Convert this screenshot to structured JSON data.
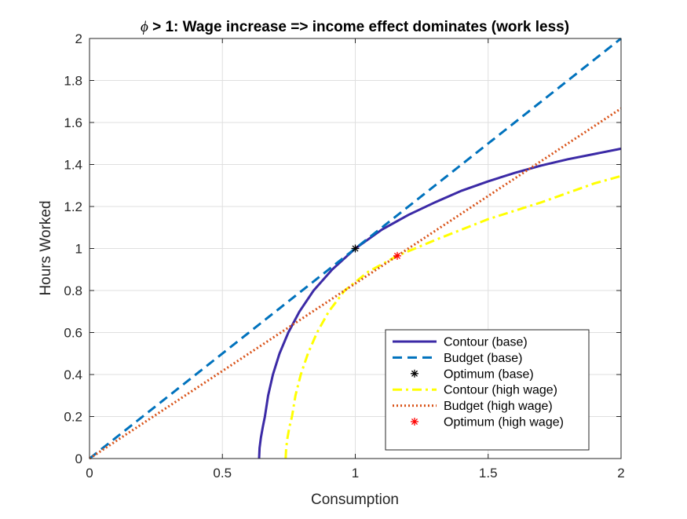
{
  "chart_data": {
    "type": "line",
    "title_symbol": "ϕ",
    "title": " > 1: Wage increase => income effect dominates (work less)",
    "xlabel": "Consumption",
    "ylabel": "Hours Worked",
    "xlim": [
      0,
      2
    ],
    "ylim": [
      0,
      2
    ],
    "xticks": [
      0,
      0.5,
      1,
      1.5,
      2
    ],
    "xtick_labels": [
      "0",
      "0.5",
      "1",
      "1.5",
      "2"
    ],
    "yticks": [
      0,
      0.2,
      0.4,
      0.6,
      0.8,
      1,
      1.2,
      1.4,
      1.6,
      1.8,
      2
    ],
    "ytick_labels": [
      "0",
      "0.2",
      "0.4",
      "0.6",
      "0.8",
      "1",
      "1.2",
      "1.4",
      "1.6",
      "1.8",
      "2"
    ],
    "grid": true,
    "legend_position": "bottom-right",
    "series": [
      {
        "name": "Contour (base)",
        "style": "solid",
        "color": "#3b2aa6",
        "marker": "none",
        "points": [
          [
            0.638,
            0
          ],
          [
            0.64,
            0.05
          ],
          [
            0.645,
            0.1
          ],
          [
            0.652,
            0.15
          ],
          [
            0.66,
            0.2
          ],
          [
            0.672,
            0.3
          ],
          [
            0.69,
            0.4
          ],
          [
            0.715,
            0.5
          ],
          [
            0.748,
            0.6
          ],
          [
            0.79,
            0.7
          ],
          [
            0.843,
            0.8
          ],
          [
            0.913,
            0.9
          ],
          [
            1.0,
            1.0
          ],
          [
            1.1,
            1.09
          ],
          [
            1.2,
            1.16
          ],
          [
            1.3,
            1.22
          ],
          [
            1.4,
            1.275
          ],
          [
            1.5,
            1.32
          ],
          [
            1.6,
            1.36
          ],
          [
            1.7,
            1.395
          ],
          [
            1.8,
            1.425
          ],
          [
            1.9,
            1.45
          ],
          [
            2.0,
            1.475
          ]
        ]
      },
      {
        "name": "Budget (base)",
        "style": "dashed",
        "color": "#0072bd",
        "marker": "none",
        "points": [
          [
            0,
            0
          ],
          [
            2,
            2
          ]
        ]
      },
      {
        "name": "Optimum (base)",
        "style": "none",
        "color": "#000000",
        "marker": "*",
        "points": [
          [
            1.0,
            1.0
          ]
        ]
      },
      {
        "name": "Contour (high wage)",
        "style": "dashdot",
        "color": "#ffff00",
        "marker": "none",
        "points": [
          [
            0.738,
            0
          ],
          [
            0.74,
            0.05
          ],
          [
            0.745,
            0.1
          ],
          [
            0.752,
            0.15
          ],
          [
            0.762,
            0.2
          ],
          [
            0.775,
            0.3
          ],
          [
            0.795,
            0.4
          ],
          [
            0.822,
            0.5
          ],
          [
            0.856,
            0.6
          ],
          [
            0.9,
            0.7
          ],
          [
            0.96,
            0.8
          ],
          [
            1.05,
            0.89
          ],
          [
            1.158,
            0.965
          ],
          [
            1.3,
            1.04
          ],
          [
            1.4,
            1.09
          ],
          [
            1.5,
            1.14
          ],
          [
            1.6,
            1.18
          ],
          [
            1.7,
            1.22
          ],
          [
            1.8,
            1.265
          ],
          [
            1.9,
            1.31
          ],
          [
            2.0,
            1.345
          ]
        ]
      },
      {
        "name": "Budget (high wage)",
        "style": "dotted",
        "color": "#d95319",
        "marker": "none",
        "points": [
          [
            0,
            0
          ],
          [
            2,
            1.667
          ]
        ]
      },
      {
        "name": "Optimum (high wage)",
        "style": "none",
        "color": "#ff0000",
        "marker": "*",
        "points": [
          [
            1.158,
            0.965
          ]
        ]
      }
    ]
  }
}
